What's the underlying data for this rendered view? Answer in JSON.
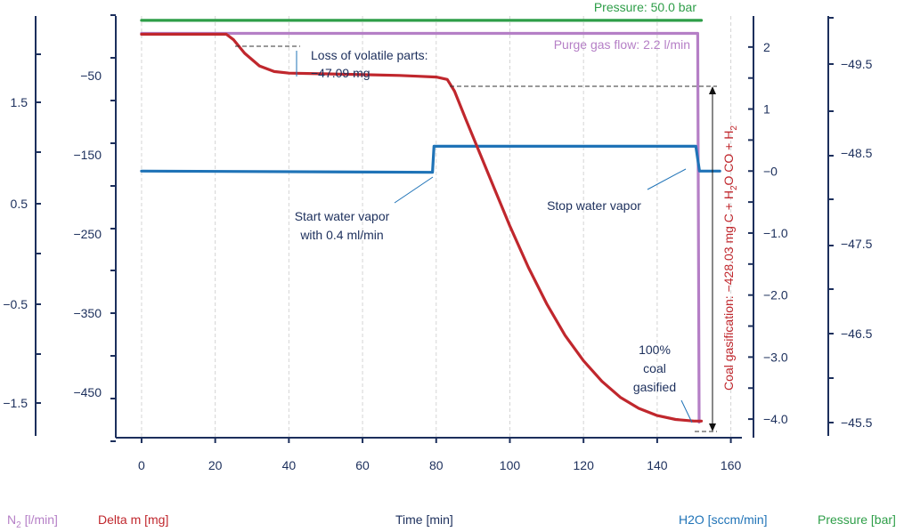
{
  "chart_data": {
    "type": "line",
    "xlabel": "Time [min]",
    "xlim": [
      -7,
      163
    ],
    "xticks": [
      0,
      20,
      40,
      60,
      80,
      100,
      120,
      140,
      160
    ],
    "axes": {
      "n2": {
        "label_prefix": "N",
        "label_sub": "2",
        "label_suffix": " [l/min]",
        "color": "#b57fc6",
        "ticks": [
          "1.5",
          "0.5",
          "−0.5",
          "−1.5"
        ]
      },
      "delta_m": {
        "label": "Delta m [mg]",
        "color": "#c0272d",
        "ylim": [
          -507,
          25
        ],
        "ticks": [
          "−50",
          "−150",
          "−250",
          "−350",
          "−450"
        ]
      },
      "h2o": {
        "label": "H2O [sccm/min]",
        "color": "#1f73b7",
        "ylim": [
          -4.3,
          2.5
        ],
        "ticks": [
          "2",
          "1",
          "−0",
          "−1.0",
          "−2.0",
          "−3.0",
          "−4.0"
        ]
      },
      "pressure": {
        "label": "Pressure [bar]",
        "color": "#2e9e48",
        "ticks": [
          "−49.5",
          "−48.5",
          "−47.5",
          "−46.5",
          "−45.5"
        ]
      }
    },
    "series": [
      {
        "name": "Delta m [mg]",
        "axis": "delta_m",
        "color": "#c0272d",
        "x": [
          0,
          23,
          25,
          28,
          32,
          36,
          40,
          50,
          60,
          70,
          75,
          80,
          83,
          85,
          88,
          92,
          96,
          100,
          105,
          110,
          115,
          120,
          125,
          130,
          135,
          140,
          145,
          150,
          152
        ],
        "y": [
          2,
          2,
          -5,
          -22,
          -38,
          -45,
          -47,
          -48,
          -49,
          -50,
          -51,
          -52,
          -55,
          -70,
          -105,
          -150,
          -195,
          -240,
          -292,
          -338,
          -378,
          -410,
          -436,
          -456,
          -470,
          -479,
          -484,
          -486,
          -486
        ]
      },
      {
        "name": "H2O [sccm/min]",
        "axis": "h2o",
        "color": "#1f73b7",
        "x": [
          0,
          79,
          79.4,
          80,
          150,
          150.5,
          151.5,
          157
        ],
        "y": [
          0.0,
          -0.02,
          0.4,
          0.4,
          0.4,
          0.4,
          0.0,
          0.0
        ]
      },
      {
        "name": "Purge gas flow",
        "axis": "h2o",
        "color": "#b57fc6",
        "x": [
          0,
          151,
          151.4
        ],
        "y": [
          2.22,
          2.22,
          -4.05
        ]
      },
      {
        "name": "Pressure",
        "axis": "h2o",
        "color": "#2e9e48",
        "x": [
          0,
          152
        ],
        "y": [
          2.43,
          2.43
        ]
      }
    ],
    "annotations": {
      "pressure": "Pressure: 50.0 bar",
      "purge": "Purge gas flow: 2.2 l/min",
      "volatile_line1": "Loss of volatile parts:",
      "volatile_line2": "−47.09 mg",
      "start_line1": "Start water vapor",
      "start_line2": "with 0.4 ml/min",
      "stop": "Stop water vapor",
      "gasified_line1": "100%",
      "gasified_line2": "coal",
      "gasified_line3": "gasified",
      "gasification_pre": "Coal gasification: −428.03 mg C + H",
      "gasification_sub1": "2",
      "gasification_mid": "O CO + H",
      "gasification_sub2": "2"
    }
  }
}
